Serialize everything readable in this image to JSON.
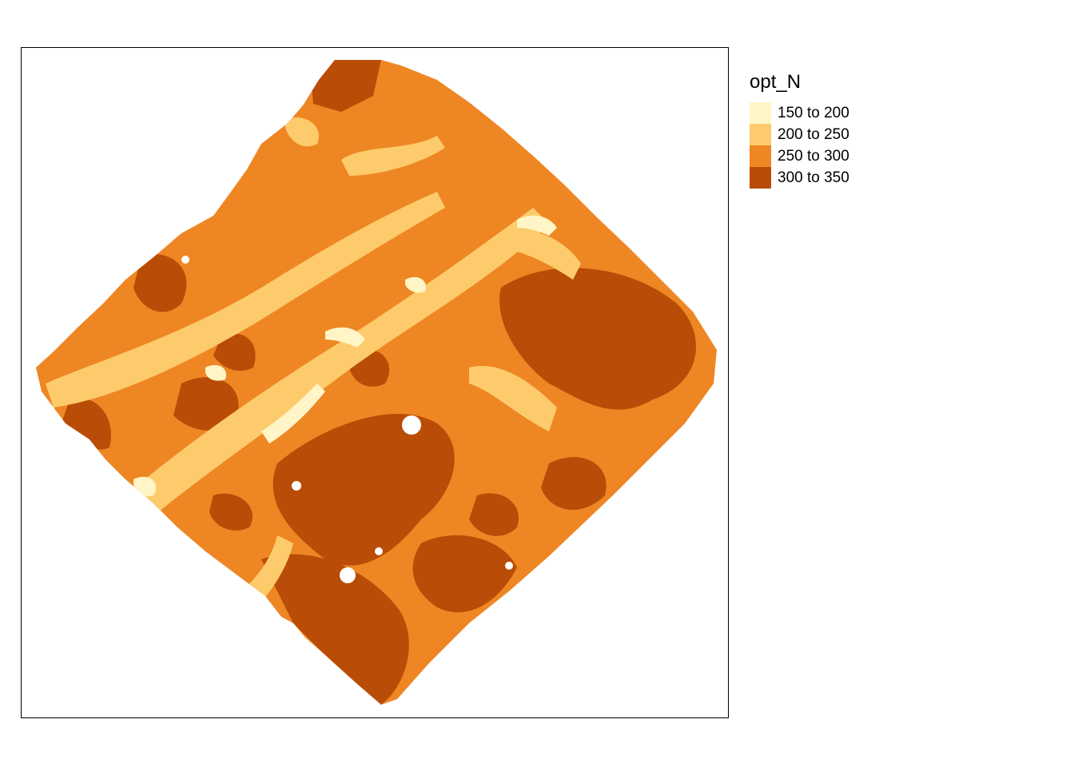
{
  "legend": {
    "title": "opt_N",
    "classes": [
      {
        "label": "150 to 200",
        "color": "#FFF5C6"
      },
      {
        "label": "200 to 250",
        "color": "#FDCB6B"
      },
      {
        "label": "250 to 300",
        "color": "#EE8624"
      },
      {
        "label": "300 to 350",
        "color": "#B94C06"
      }
    ]
  }
}
